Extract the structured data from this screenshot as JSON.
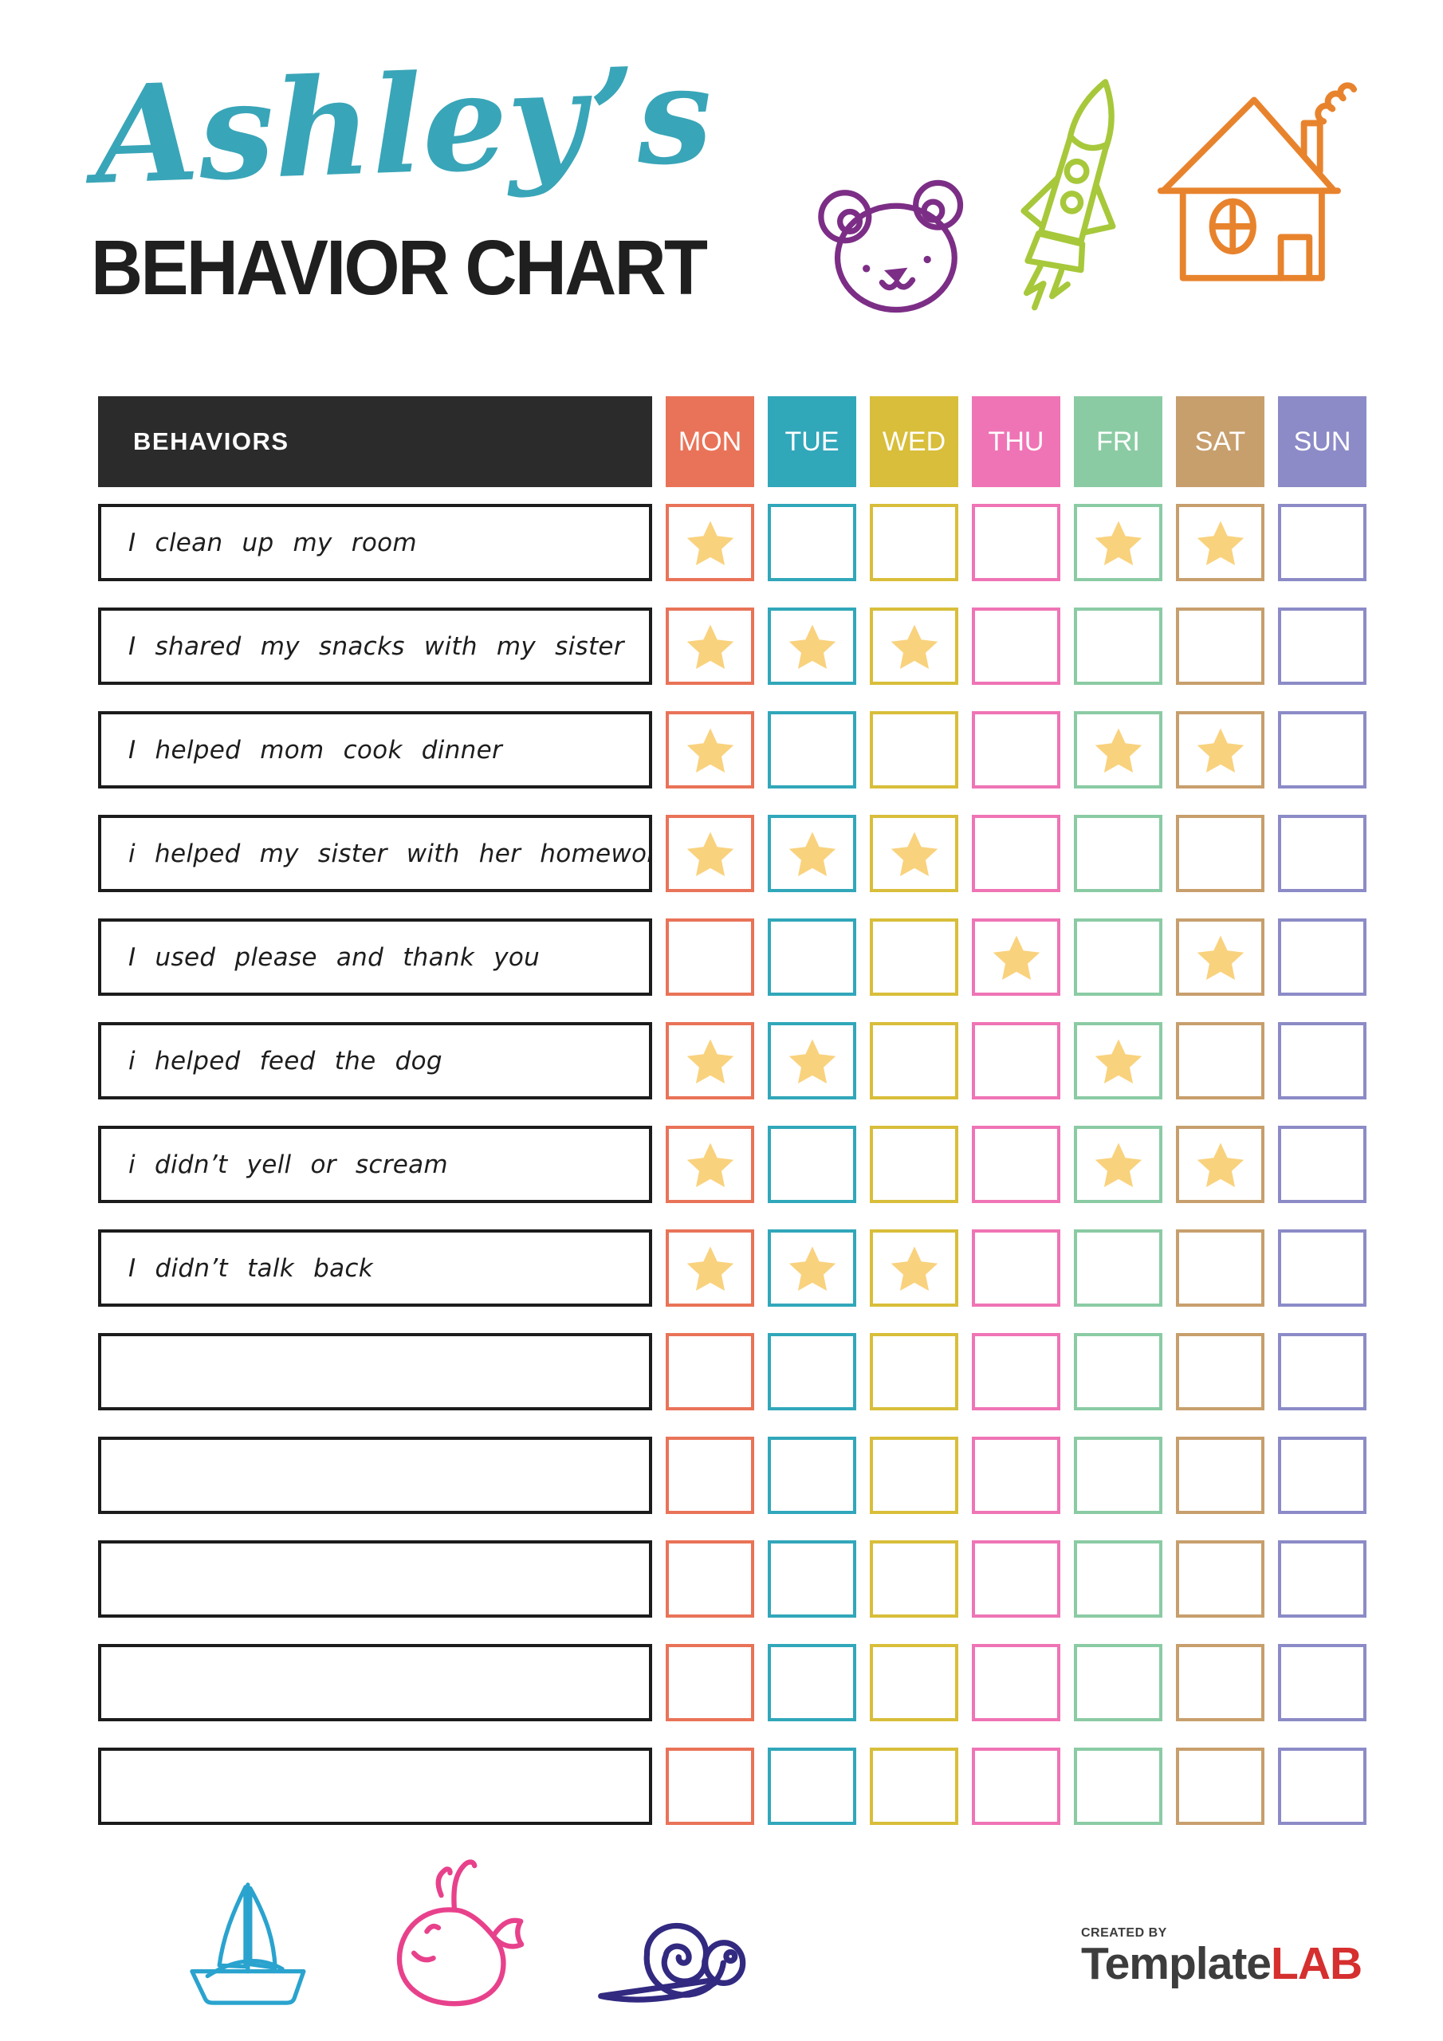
{
  "header": {
    "script_title": "Ashley’s",
    "main_title": "BEHAVIOR CHART"
  },
  "colors": {
    "title_script": "#39A5B8",
    "title_main": "#1f1f1f",
    "header_bg": "#2b2b2b",
    "header_text": "#ffffff",
    "row_border": "#1c1c1c",
    "star": "#F9D27E",
    "doodle_bear": "#7C2E86",
    "doodle_rocket": "#A7C83B",
    "doodle_house": "#E8832D",
    "doodle_sailboat": "#2AA3CE",
    "doodle_whale": "#E8418C",
    "doodle_snail": "#322A80",
    "logo_text": "#3d3d3d",
    "logo_accent": "#D62F2F"
  },
  "table": {
    "behaviors_header": "BEHAVIORS",
    "days": [
      {
        "label": "MON",
        "color": "#E97358"
      },
      {
        "label": "TUE",
        "color": "#31A7BA"
      },
      {
        "label": "WED",
        "color": "#D8BE3A"
      },
      {
        "label": "THU",
        "color": "#EF74B5"
      },
      {
        "label": "FRI",
        "color": "#8BCBA4"
      },
      {
        "label": "SAT",
        "color": "#C79F6D"
      },
      {
        "label": "SUN",
        "color": "#8C8BC7"
      }
    ],
    "rows": [
      {
        "label": "I clean up my room",
        "stars": [
          1,
          0,
          0,
          0,
          1,
          1,
          0
        ]
      },
      {
        "label": "I shared my snacks with my sister",
        "stars": [
          1,
          1,
          1,
          0,
          0,
          0,
          0
        ]
      },
      {
        "label": "I helped mom cook dinner",
        "stars": [
          1,
          0,
          0,
          0,
          1,
          1,
          0
        ]
      },
      {
        "label": "i helped my sister with her homework",
        "stars": [
          1,
          1,
          1,
          0,
          0,
          0,
          0
        ]
      },
      {
        "label": "I used please and thank you",
        "stars": [
          0,
          0,
          0,
          1,
          0,
          1,
          0
        ]
      },
      {
        "label": "i helped feed the dog",
        "stars": [
          1,
          1,
          0,
          0,
          1,
          0,
          0
        ]
      },
      {
        "label": "i didn’t yell or scream",
        "stars": [
          1,
          0,
          0,
          0,
          1,
          1,
          0
        ]
      },
      {
        "label": "I didn’t talk back",
        "stars": [
          1,
          1,
          1,
          0,
          0,
          0,
          0
        ]
      },
      {
        "label": "",
        "stars": [
          0,
          0,
          0,
          0,
          0,
          0,
          0
        ]
      },
      {
        "label": "",
        "stars": [
          0,
          0,
          0,
          0,
          0,
          0,
          0
        ]
      },
      {
        "label": "",
        "stars": [
          0,
          0,
          0,
          0,
          0,
          0,
          0
        ]
      },
      {
        "label": "",
        "stars": [
          0,
          0,
          0,
          0,
          0,
          0,
          0
        ]
      },
      {
        "label": "",
        "stars": [
          0,
          0,
          0,
          0,
          0,
          0,
          0
        ]
      }
    ]
  },
  "footer": {
    "created_by": "CREATED BY",
    "brand_name": "Template",
    "brand_suffix": "LAB"
  }
}
